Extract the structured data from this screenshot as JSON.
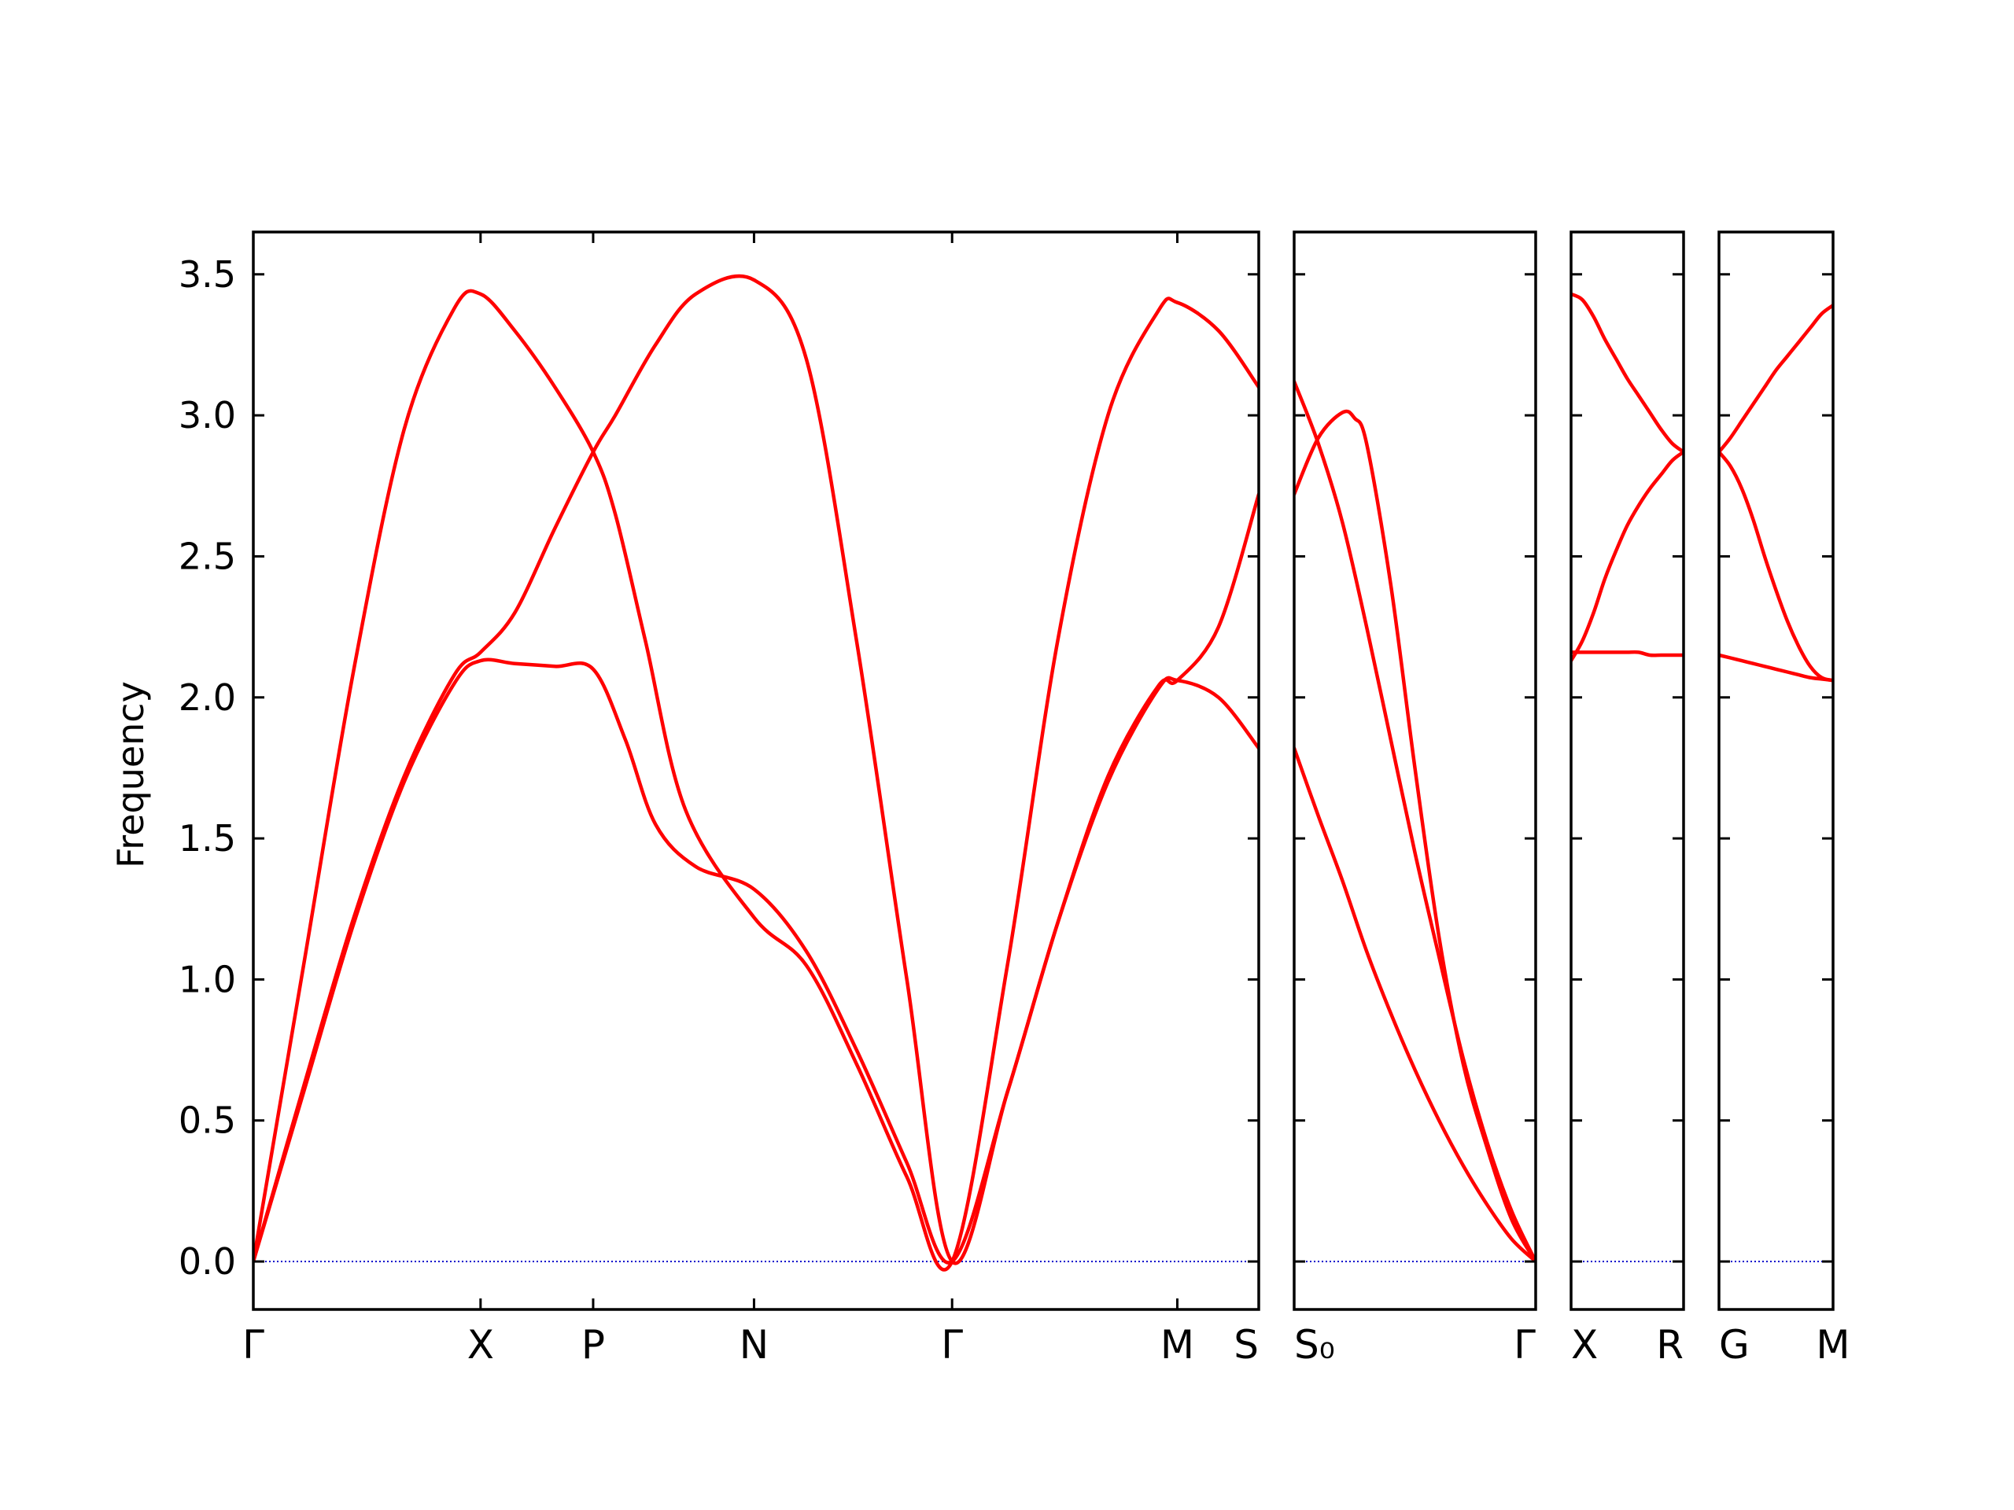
{
  "chart_data": {
    "type": "line",
    "ylabel": "Frequency",
    "xlabel": "",
    "ylim": [
      -0.17,
      3.65
    ],
    "yticks": [
      "0.0",
      "0.5",
      "1.0",
      "1.5",
      "2.0",
      "2.5",
      "3.0",
      "3.5"
    ],
    "grid": false,
    "legend": "none",
    "colors": {
      "bands": "#ff0000",
      "zero_line": "#0000cc",
      "frame": "#000000"
    },
    "panels": [
      {
        "xlim": [
          0,
          10
        ],
        "ticks": [
          {
            "x": 0,
            "label": "Γ"
          },
          {
            "x": 2.26,
            "label": "X"
          },
          {
            "x": 3.38,
            "label": "P"
          },
          {
            "x": 4.98,
            "label": "N"
          },
          {
            "x": 6.95,
            "label": "Γ"
          },
          {
            "x": 9.19,
            "label": "M"
          },
          {
            "x": 10,
            "label": "S"
          }
        ],
        "series": [
          {
            "x": [
              0,
              0.5,
              1.0,
              1.5,
              2.0,
              2.26,
              2.6,
              3.0,
              3.38,
              3.6,
              3.9,
              4.3,
              4.98,
              5.5,
              6.0,
              6.5,
              6.95,
              7.5,
              8.0,
              8.5,
              9.0,
              9.19,
              9.6,
              10
            ],
            "y": [
              0,
              1.05,
              2.1,
              2.95,
              3.38,
              3.43,
              3.3,
              3.1,
              2.87,
              2.65,
              2.2,
              1.6,
              1.22,
              1.05,
              0.7,
              0.3,
              0,
              1.05,
              2.2,
              3.0,
              3.37,
              3.4,
              3.3,
              3.1
            ]
          },
          {
            "x": [
              0,
              0.5,
              1.0,
              1.5,
              2.0,
              2.26,
              2.6,
              3.0,
              3.38,
              3.7,
              4.0,
              4.4,
              4.98,
              5.5,
              6.0,
              6.5,
              6.95,
              7.5,
              8.0,
              8.5,
              9.0,
              9.19,
              9.6,
              10
            ],
            "y": [
              0,
              0.6,
              1.2,
              1.7,
              2.05,
              2.13,
              2.12,
              2.11,
              2.1,
              1.85,
              1.55,
              1.4,
              1.32,
              1.1,
              0.75,
              0.35,
              0,
              0.6,
              1.2,
              1.7,
              2.03,
              2.06,
              2.0,
              1.82
            ]
          },
          {
            "x": [
              0,
              0.5,
              1.0,
              1.5,
              2.0,
              2.26,
              2.6,
              3.0,
              3.38,
              3.6,
              4.0,
              4.4,
              4.98,
              5.5,
              6.0,
              6.5,
              6.95,
              7.5,
              8.0,
              8.5,
              9.0,
              9.19,
              9.6,
              10
            ],
            "y": [
              0,
              0.62,
              1.22,
              1.72,
              2.08,
              2.16,
              2.3,
              2.6,
              2.87,
              3.0,
              3.25,
              3.43,
              3.48,
              3.2,
              2.2,
              1.0,
              0,
              0.6,
              1.2,
              1.72,
              2.04,
              2.06,
              2.25,
              2.72
            ]
          }
        ]
      },
      {
        "xlim": [
          0,
          10
        ],
        "ticks": [
          {
            "x": 0,
            "label": "S₀"
          },
          {
            "x": 10,
            "label": "Γ"
          }
        ],
        "series": [
          {
            "x": [
              0,
              1.0,
              2.0,
              3.0,
              4.0,
              5.0,
              6.0,
              7.0,
              8.0,
              9.0,
              10
            ],
            "y": [
              3.12,
              2.9,
              2.62,
              2.25,
              1.85,
              1.45,
              1.08,
              0.72,
              0.42,
              0.18,
              0
            ]
          },
          {
            "x": [
              0,
              1.0,
              2.0,
              2.5,
              3.0,
              4.0,
              5.0,
              6.0,
              7.0,
              8.0,
              9.0,
              10
            ],
            "y": [
              2.72,
              2.92,
              3.01,
              2.99,
              2.9,
              2.4,
              1.75,
              1.15,
              0.7,
              0.4,
              0.15,
              0
            ]
          },
          {
            "x": [
              0,
              1.0,
              2.0,
              3.0,
              4.0,
              5.0,
              6.0,
              7.0,
              8.0,
              9.0,
              10
            ],
            "y": [
              1.82,
              1.58,
              1.35,
              1.1,
              0.88,
              0.68,
              0.5,
              0.34,
              0.2,
              0.08,
              0
            ]
          }
        ]
      },
      {
        "xlim": [
          0,
          10
        ],
        "ticks": [
          {
            "x": 0,
            "label": "X"
          },
          {
            "x": 10,
            "label": "R"
          }
        ],
        "series": [
          {
            "x": [
              0,
              1.0,
              2.0,
              3.0,
              4.0,
              5.0,
              6.0,
              7.0,
              8.0,
              9.0,
              10
            ],
            "y": [
              3.43,
              3.41,
              3.35,
              3.27,
              3.2,
              3.13,
              3.07,
              3.01,
              2.95,
              2.9,
              2.87
            ]
          },
          {
            "x": [
              0,
              1.0,
              2.0,
              3.0,
              4.0,
              5.0,
              6.0,
              7.0,
              8.0,
              9.0,
              10
            ],
            "y": [
              2.13,
              2.2,
              2.3,
              2.42,
              2.52,
              2.61,
              2.68,
              2.74,
              2.79,
              2.84,
              2.87
            ]
          },
          {
            "x": [
              0,
              1.0,
              2.0,
              3.0,
              4.0,
              5.0,
              6.0,
              7.0,
              8.0,
              9.0,
              10
            ],
            "y": [
              2.16,
              2.16,
              2.16,
              2.16,
              2.16,
              2.16,
              2.16,
              2.15,
              2.15,
              2.15,
              2.15
            ]
          }
        ]
      },
      {
        "xlim": [
          0,
          10
        ],
        "ticks": [
          {
            "x": 0,
            "label": "G"
          },
          {
            "x": 10,
            "label": "M"
          }
        ],
        "series": [
          {
            "x": [
              0,
              1.0,
              2.0,
              3.0,
              4.0,
              5.0,
              6.0,
              7.0,
              8.0,
              9.0,
              10
            ],
            "y": [
              2.87,
              2.92,
              2.98,
              3.04,
              3.1,
              3.16,
              3.21,
              3.26,
              3.31,
              3.36,
              3.39
            ]
          },
          {
            "x": [
              0,
              1.0,
              2.0,
              3.0,
              4.0,
              5.0,
              6.0,
              7.0,
              8.0,
              9.0,
              10
            ],
            "y": [
              2.87,
              2.82,
              2.74,
              2.63,
              2.5,
              2.38,
              2.27,
              2.18,
              2.11,
              2.07,
              2.06
            ]
          },
          {
            "x": [
              0,
              1.0,
              2.0,
              3.0,
              4.0,
              5.0,
              6.0,
              7.0,
              8.0,
              9.0,
              10
            ],
            "y": [
              2.15,
              2.14,
              2.13,
              2.12,
              2.11,
              2.1,
              2.09,
              2.08,
              2.07,
              2.065,
              2.06
            ]
          }
        ]
      }
    ]
  }
}
